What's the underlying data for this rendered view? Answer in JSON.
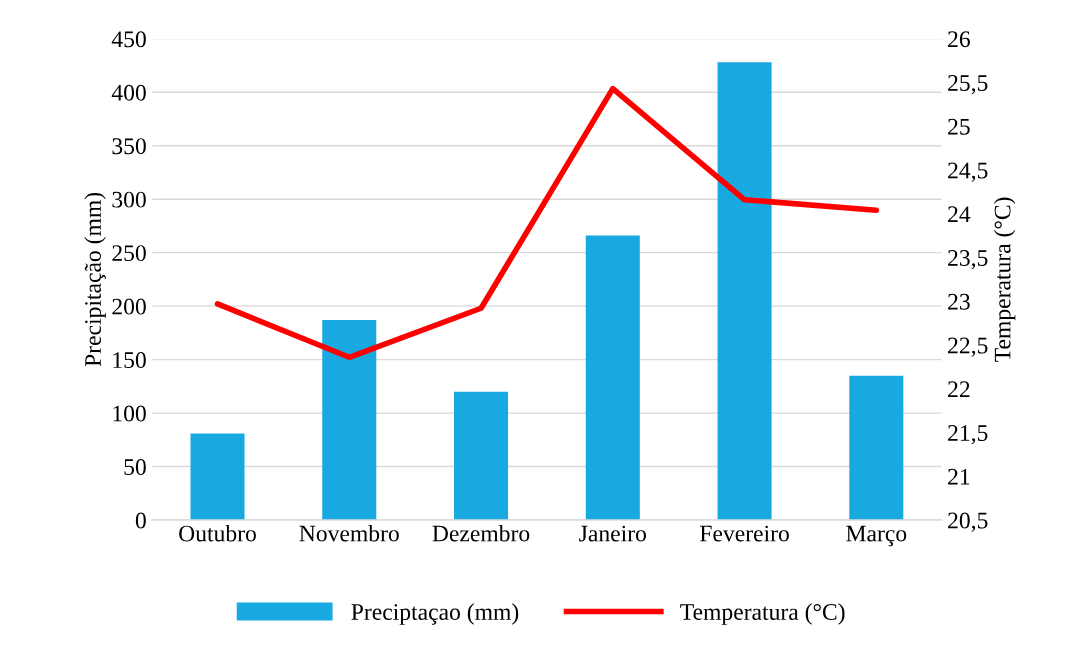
{
  "chart_data": {
    "type": "bar",
    "ylabel": "Precipitação (mm)",
    "y2label": "Temperatura (°C)",
    "categories": [
      "Outubro",
      "Novembro",
      "Dezembro",
      "Janeiro",
      "Fevereiro",
      "Março"
    ],
    "series": [
      {
        "name": "Preciptaçao (mm)",
        "color": "#19a9e1",
        "values": [
          81,
          187,
          120,
          266,
          428,
          135
        ]
      },
      {
        "name": "Temperatura (°C)",
        "type": "line",
        "axis": "y2",
        "color": "#ff0000",
        "values": [
          22.97,
          22.36,
          22.92,
          25.43,
          24.16,
          24.04
        ]
      }
    ],
    "ylim": [
      0,
      450
    ],
    "yticks": [
      0,
      50,
      100,
      150,
      200,
      250,
      300,
      350,
      400,
      450
    ],
    "y2lim": [
      20.5,
      26
    ],
    "y2ticks": [
      {
        "value": 20.5,
        "label": "20,5"
      },
      21,
      {
        "value": 21.5,
        "label": "21,5"
      },
      22,
      {
        "value": 22.5,
        "label": "22,5"
      },
      23,
      {
        "value": 23.5,
        "label": "23,5"
      },
      24,
      {
        "value": 24.5,
        "label": "24,5"
      },
      25,
      {
        "value": 25.5,
        "label": "25,5"
      },
      26
    ],
    "grid": "y",
    "legend": "bottom",
    "marker": "none",
    "line_style": "solid"
  }
}
